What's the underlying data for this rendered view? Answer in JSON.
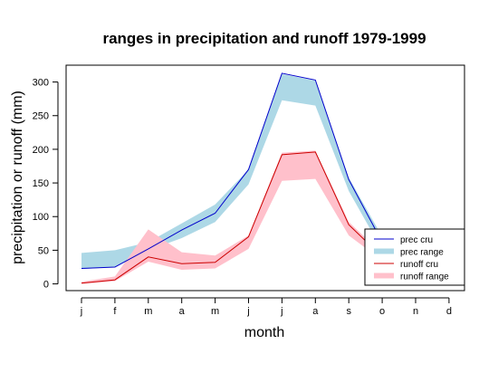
{
  "chart_data": {
    "type": "line",
    "title": "ranges in precipitation and runoff 1979-1999",
    "xlabel": "month",
    "ylabel": "precipitation or runoff (mm)",
    "categories": [
      "j",
      "f",
      "m",
      "a",
      "m",
      "j",
      "j",
      "a",
      "s",
      "o",
      "n",
      "d"
    ],
    "yticks": [
      0,
      50,
      100,
      150,
      200,
      250,
      300
    ],
    "ylim": [
      -10,
      325
    ],
    "series": [
      {
        "name": "prec cru",
        "kind": "line",
        "color": "#0000cc",
        "values": [
          23,
          25,
          52,
          80,
          105,
          170,
          313,
          303,
          155,
          62,
          null,
          null
        ]
      },
      {
        "name": "prec range",
        "kind": "band",
        "color": "#add8e6",
        "lower": [
          22,
          25,
          50,
          68,
          92,
          148,
          273,
          265,
          138,
          50,
          null,
          null
        ],
        "upper": [
          46,
          50,
          62,
          90,
          118,
          170,
          312,
          302,
          158,
          70,
          null,
          null
        ]
      },
      {
        "name": "runoff cru",
        "kind": "line",
        "color": "#cc0000",
        "values": [
          1,
          6,
          40,
          30,
          32,
          70,
          192,
          196,
          88,
          40,
          null,
          null
        ]
      },
      {
        "name": "runoff range",
        "kind": "band",
        "color": "#ffc0cb",
        "lower": [
          0,
          4,
          33,
          21,
          23,
          52,
          153,
          156,
          72,
          35,
          null,
          null
        ],
        "upper": [
          3,
          11,
          81,
          47,
          42,
          72,
          195,
          198,
          92,
          45,
          null,
          null
        ]
      }
    ],
    "legend": {
      "position": "bottom-right",
      "entries": [
        {
          "label": "prec cru",
          "color": "#0000cc",
          "kind": "line"
        },
        {
          "label": "prec range",
          "color": "#add8e6",
          "kind": "band"
        },
        {
          "label": "runoff cru",
          "color": "#cc0000",
          "kind": "line"
        },
        {
          "label": "runoff range",
          "color": "#ffc0cb",
          "kind": "band"
        }
      ]
    }
  }
}
